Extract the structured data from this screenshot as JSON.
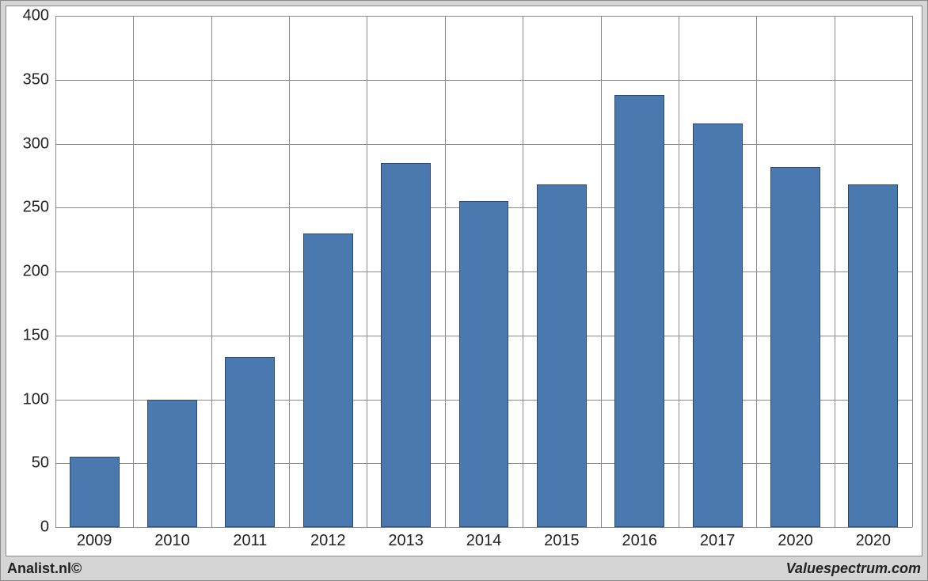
{
  "chart": {
    "type": "bar",
    "background_color": "#d5d5d5",
    "plot_background": "#ffffff",
    "border_color": "#8a8a8a",
    "grid_color": "#8a8a8a",
    "bar_fill": "#4a79b0",
    "bar_border": "#2a4a74",
    "font_family": "Arial, Helvetica, sans-serif",
    "tick_fontsize": 20,
    "ylim": [
      0,
      400
    ],
    "ytick_step": 50,
    "yticks": [
      0,
      50,
      100,
      150,
      200,
      250,
      300,
      350,
      400
    ],
    "vgrid_positions": [
      0,
      1,
      2,
      3,
      4,
      5,
      6,
      7,
      8,
      9,
      10,
      11
    ],
    "categories": [
      "2009",
      "2010",
      "2011",
      "2012",
      "2013",
      "2014",
      "2015",
      "2016",
      "2017",
      "2020",
      "2020"
    ],
    "values": [
      55,
      100,
      133,
      230,
      285,
      255,
      268,
      338,
      316,
      282,
      268
    ],
    "bar_width_ratio": 0.64
  },
  "footer": {
    "left": "Analist.nl©",
    "right": "Valuespectrum.com"
  }
}
